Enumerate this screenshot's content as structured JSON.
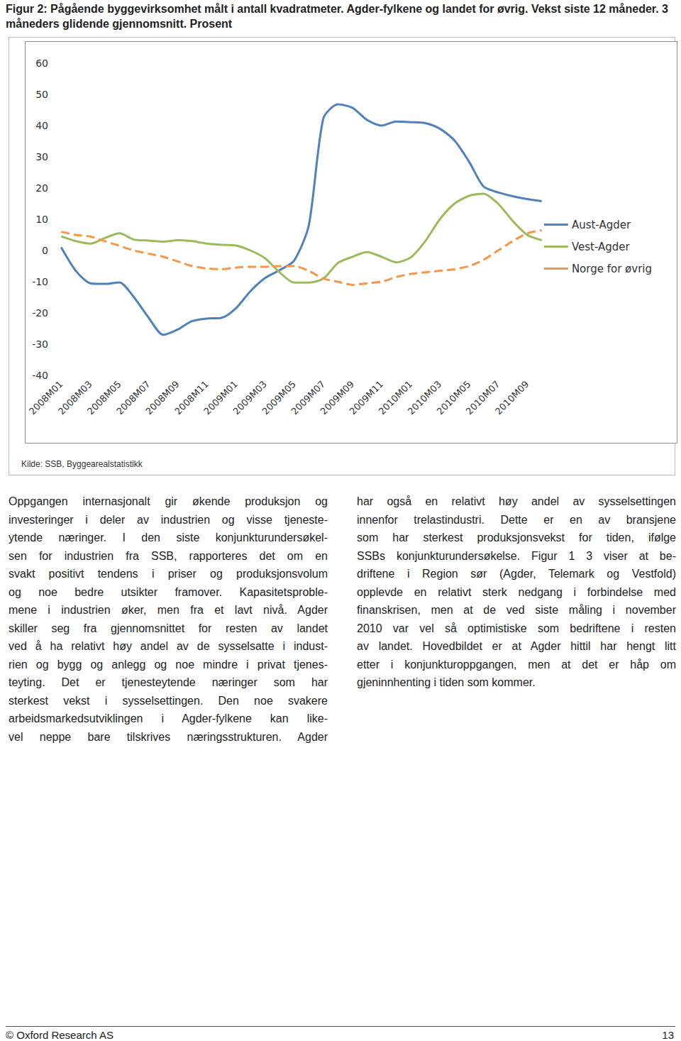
{
  "caption": "Figur 2: Pågående byggevirksomhet målt i antall kvadratmeter. Agder-fylkene og landet for øvrig. Vekst siste 12 måneder. 3 måneders glidende gjennomsnitt. Prosent",
  "chart_data": {
    "type": "line",
    "categories": [
      "2008M01",
      null,
      "2008M03",
      null,
      "2008M05",
      null,
      "2008M07",
      null,
      "2008M09",
      null,
      "2008M11",
      null,
      "2009M01",
      null,
      "2009M03",
      null,
      "2009M05",
      null,
      "2009M07",
      null,
      "2009M09",
      null,
      "2009M11",
      null,
      "2010M01",
      null,
      "2010M03",
      null,
      "2010M05",
      null,
      "2010M07",
      null,
      "2010M09",
      null
    ],
    "series": [
      {
        "name": "Aust-Agder",
        "color": "#4f81bd",
        "line_style": "solid",
        "values": [
          1,
          -6.5,
          -10.5,
          -10.7,
          -10.2,
          -15,
          -21.5,
          -27,
          -25.3,
          -22.6,
          -21.8,
          -21.6,
          -18.5,
          -13,
          -8.8,
          -6.3,
          -3.2,
          8,
          42.3,
          46.8,
          45.7,
          41.8,
          40,
          41.3,
          41.1,
          40.8,
          39,
          35.3,
          28.5,
          20.5,
          18.6,
          17.4,
          16.5,
          15.8
        ]
      },
      {
        "name": "Vest-Agder",
        "color": "#9bbb59",
        "line_style": "solid",
        "values": [
          4.5,
          3,
          2.2,
          4,
          5.5,
          3.5,
          3.2,
          2.8,
          3.3,
          3,
          2.2,
          1.8,
          1.6,
          0,
          -2.5,
          -7,
          -10.3,
          -10.3,
          -9,
          -4,
          -2,
          -0.5,
          -2,
          -3.8,
          -2.2,
          3,
          10,
          15,
          17.5,
          18.2,
          15,
          9.5,
          5,
          3.3
        ]
      },
      {
        "name": "Norge for øvrig",
        "color": "#f79646",
        "line_style": "dashed",
        "values": [
          6,
          5,
          4.5,
          3,
          1.5,
          0,
          -1,
          -2,
          -3.5,
          -5,
          -5.8,
          -6,
          -5.5,
          -5.2,
          -5.2,
          -5,
          -5,
          -6.5,
          -9,
          -10,
          -11,
          -10.5,
          -10,
          -8.5,
          -7.5,
          -7,
          -6.5,
          -6,
          -5,
          -3,
          0,
          3,
          5.5,
          6.5
        ]
      }
    ],
    "ylim": [
      -40,
      60
    ],
    "yticks": [
      -40,
      -30,
      -20,
      -10,
      0,
      10,
      20,
      30,
      40,
      50,
      60
    ],
    "grid": false,
    "legend": "right"
  },
  "source": "Kilde: SSB, Byggearealstatistikk",
  "body": {
    "left": [
      "Oppgangen internasjonalt gir økende produksjon og",
      "investeringer i deler av industrien og visse tjeneste-",
      "ytende næringer. I den siste konjunkturundersøkel-",
      "sen for industrien fra SSB, rapporteres det om en",
      "svakt positivt tendens i priser og produksjonsvolum",
      "og noe bedre utsikter framover. Kapasitetsproble-",
      "mene i industrien øker, men fra et lavt nivå. Agder",
      "skiller seg fra gjennomsnittet for resten av landet",
      "ved å ha relativt høy andel av de sysselsatte i indust-",
      "rien og bygg og anlegg og noe mindre i privat tjenes-",
      "teyting. Det er tjenesteytende næringer som har",
      "sterkest vekst i sysselsettingen. Den noe svakere",
      "arbeidsmarkedsutviklingen i Agder-fylkene kan like-",
      "vel neppe bare tilskrives næringsstrukturen. Agder"
    ],
    "right": [
      "har også en relativt høy andel av sysselsettingen",
      "innenfor trelastindustri. Dette er en av bransjene",
      "som har sterkest produksjonsvekst for tiden, ifølge",
      "SSBs konjunkturundersøkelse. Figur 1 3 viser at be-",
      "driftene i Region sør (Agder, Telemark og Vestfold)",
      "opplevde en relativt sterk nedgang i forbindelse med",
      "finanskrisen, men at de ved siste måling i november",
      "2010 var vel så optimistiske som bedriftene i resten",
      "av landet. Hovedbildet er at Agder hittil har hengt litt",
      "etter i konjunkturoppgangen, men at det er håp om",
      "gjeninnhenting i tiden som kommer."
    ]
  },
  "footer": {
    "left": "© Oxford Research AS",
    "page": 13
  }
}
